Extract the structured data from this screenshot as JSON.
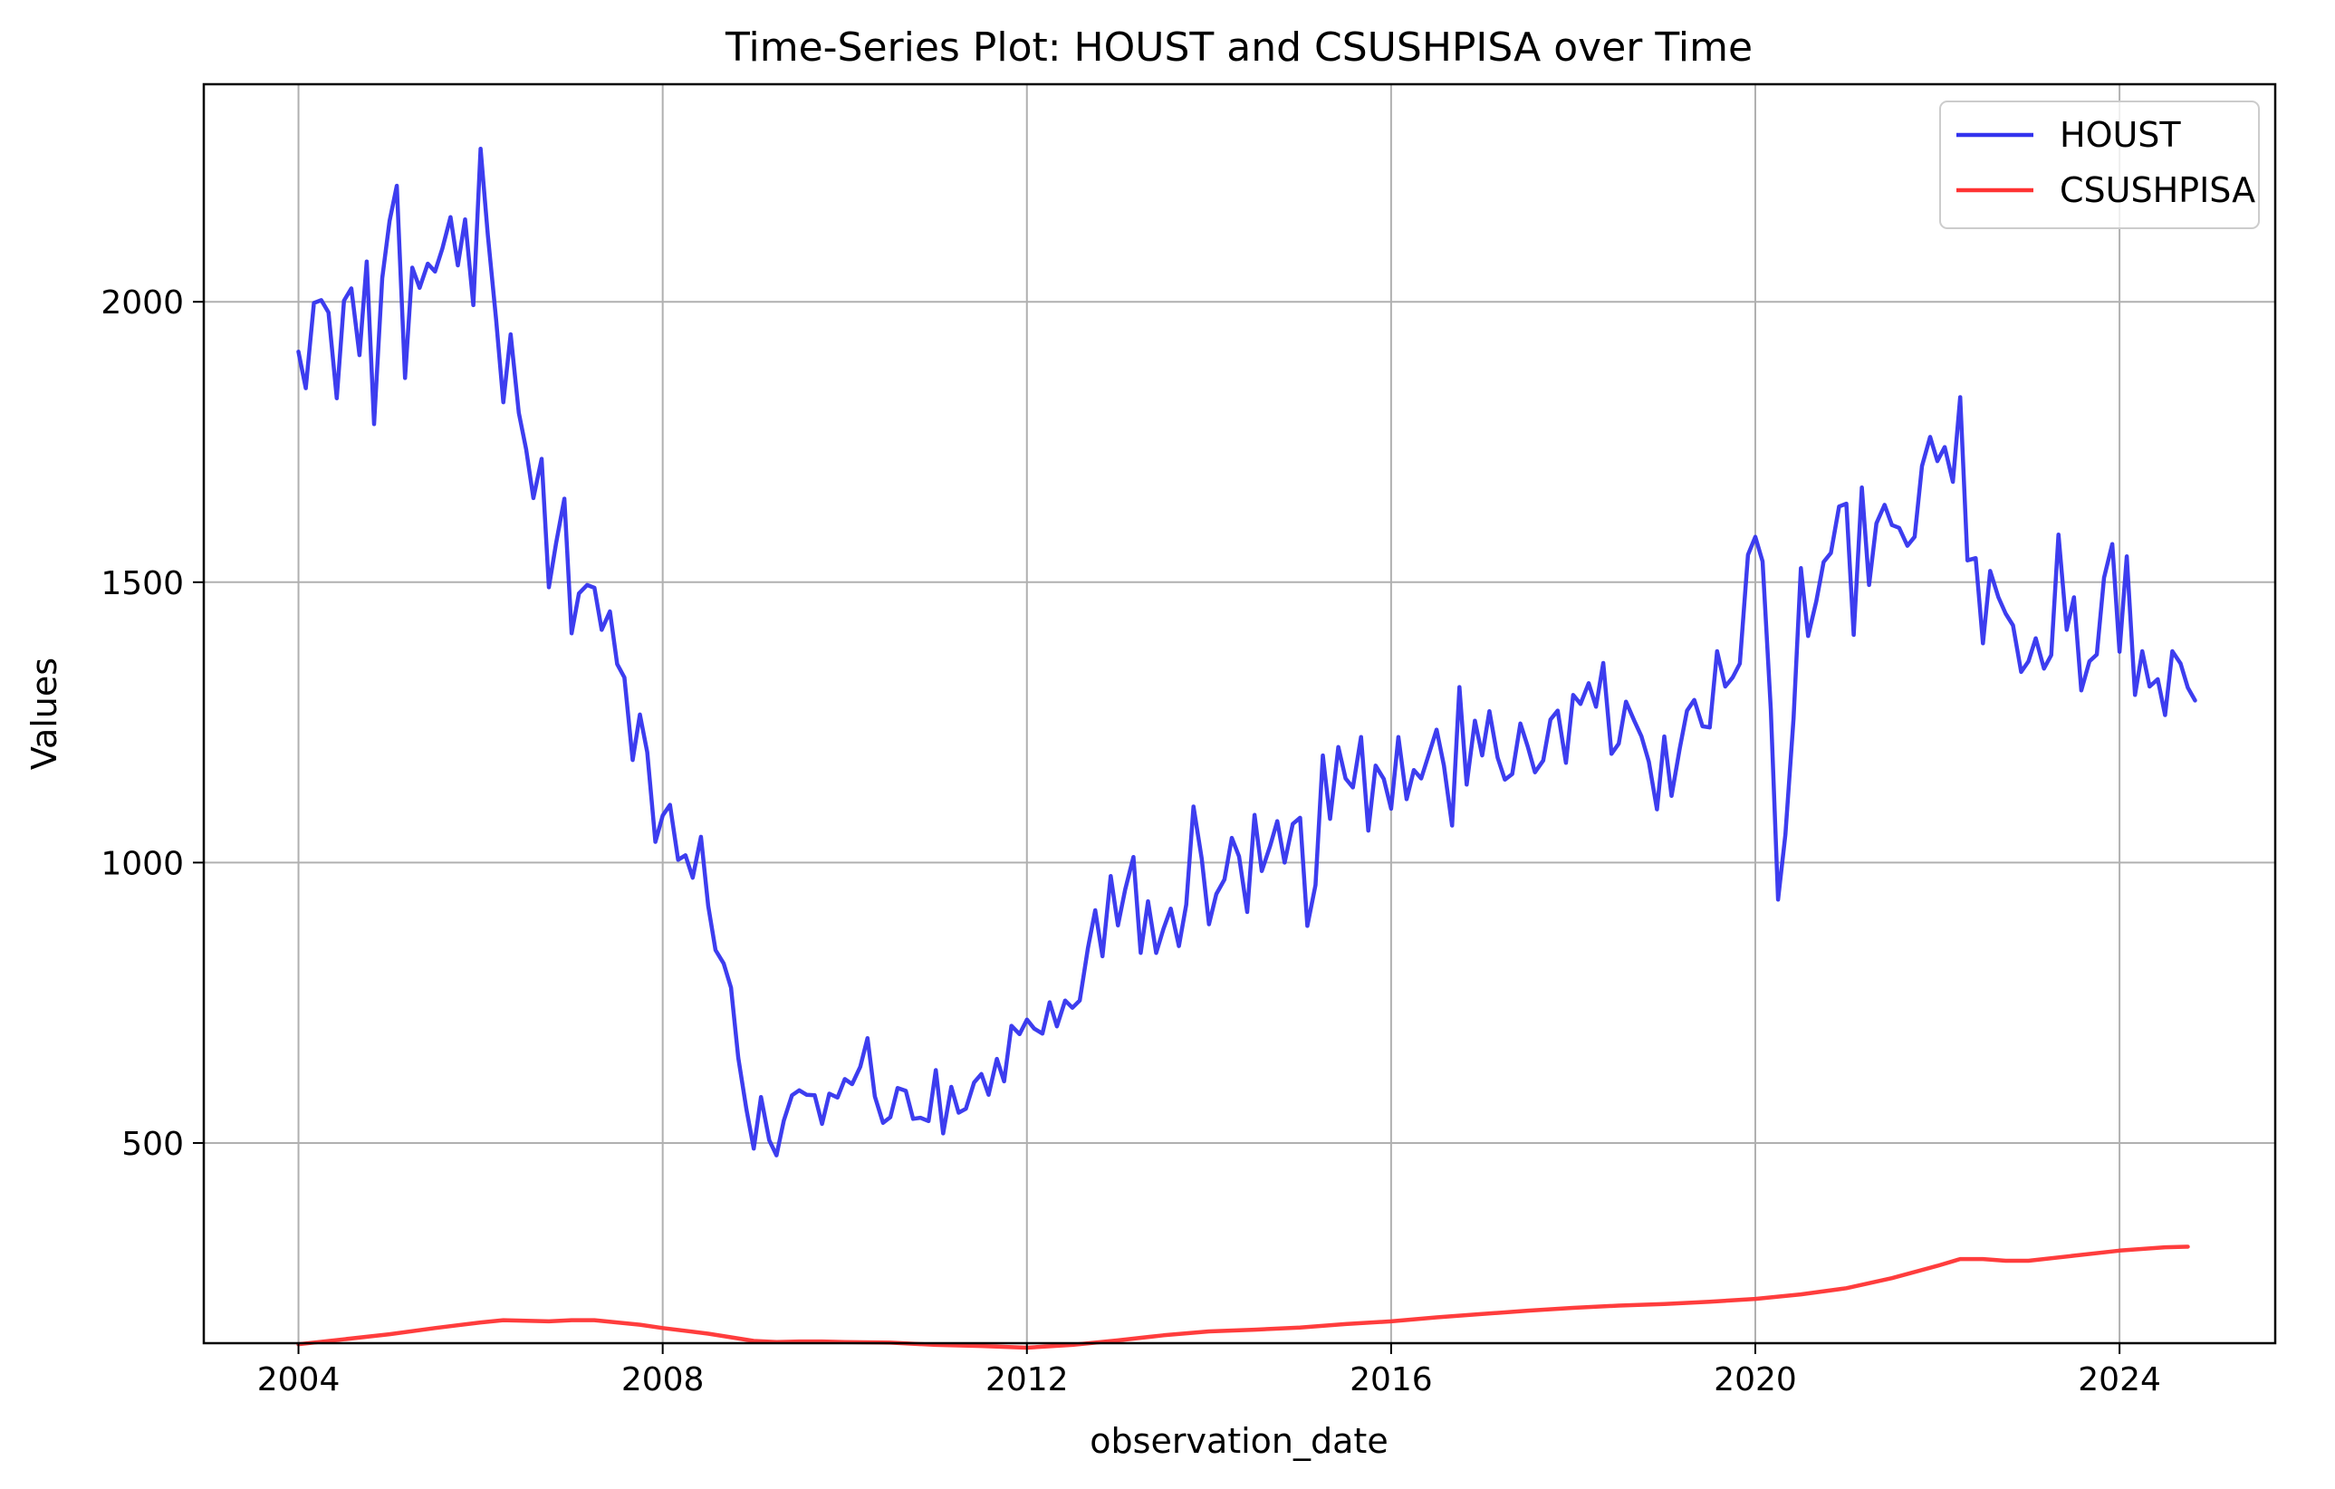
{
  "chart_data": {
    "type": "line",
    "title": "Time-Series Plot: HOUST and CSUSHPISA over Time",
    "xlabel": "observation_date",
    "ylabel": "Values",
    "xlim": [
      2002.96,
      2025.71
    ],
    "ylim": [
      143,
      2388
    ],
    "x_ticks": [
      {
        "value": 2004,
        "label": "2004"
      },
      {
        "value": 2008,
        "label": "2008"
      },
      {
        "value": 2012,
        "label": "2012"
      },
      {
        "value": 2016,
        "label": "2016"
      },
      {
        "value": 2020,
        "label": "2020"
      },
      {
        "value": 2024,
        "label": "2024"
      }
    ],
    "y_ticks": [
      {
        "value": 500,
        "label": "500"
      },
      {
        "value": 1000,
        "label": "1000"
      },
      {
        "value": 1500,
        "label": "1500"
      },
      {
        "value": 2000,
        "label": "2000"
      }
    ],
    "grid": true,
    "legend_position": "top-right",
    "series": [
      {
        "name": "HOUST",
        "color": "#3333ee",
        "x": [
          2004.0,
          2004.08,
          2004.17,
          2004.25,
          2004.33,
          2004.42,
          2004.5,
          2004.58,
          2004.67,
          2004.75,
          2004.83,
          2004.92,
          2005.0,
          2005.08,
          2005.17,
          2005.25,
          2005.33,
          2005.42,
          2005.5,
          2005.58,
          2005.67,
          2005.75,
          2005.83,
          2005.92,
          2006.0,
          2006.08,
          2006.17,
          2006.25,
          2006.33,
          2006.42,
          2006.5,
          2006.58,
          2006.67,
          2006.75,
          2006.83,
          2006.92,
          2007.0,
          2007.08,
          2007.17,
          2007.25,
          2007.33,
          2007.42,
          2007.5,
          2007.58,
          2007.67,
          2007.75,
          2007.83,
          2007.92,
          2008.0,
          2008.08,
          2008.17,
          2008.25,
          2008.33,
          2008.42,
          2008.5,
          2008.58,
          2008.67,
          2008.75,
          2008.83,
          2008.92,
          2009.0,
          2009.08,
          2009.17,
          2009.25,
          2009.33,
          2009.42,
          2009.5,
          2009.58,
          2009.67,
          2009.75,
          2009.83,
          2009.92,
          2010.0,
          2010.08,
          2010.17,
          2010.25,
          2010.33,
          2010.42,
          2010.5,
          2010.58,
          2010.67,
          2010.75,
          2010.83,
          2010.92,
          2011.0,
          2011.08,
          2011.17,
          2011.25,
          2011.33,
          2011.42,
          2011.5,
          2011.58,
          2011.67,
          2011.75,
          2011.83,
          2011.92,
          2012.0,
          2012.08,
          2012.17,
          2012.25,
          2012.33,
          2012.42,
          2012.5,
          2012.58,
          2012.67,
          2012.75,
          2012.83,
          2012.92,
          2013.0,
          2013.08,
          2013.17,
          2013.25,
          2013.33,
          2013.42,
          2013.5,
          2013.58,
          2013.67,
          2013.75,
          2013.83,
          2013.92,
          2014.0,
          2014.08,
          2014.17,
          2014.25,
          2014.33,
          2014.42,
          2014.5,
          2014.58,
          2014.67,
          2014.75,
          2014.83,
          2014.92,
          2015.0,
          2015.08,
          2015.17,
          2015.25,
          2015.33,
          2015.42,
          2015.5,
          2015.58,
          2015.67,
          2015.75,
          2015.83,
          2015.92,
          2016.0,
          2016.08,
          2016.17,
          2016.25,
          2016.33,
          2016.42,
          2016.5,
          2016.58,
          2016.67,
          2016.75,
          2016.83,
          2016.92,
          2017.0,
          2017.08,
          2017.17,
          2017.25,
          2017.33,
          2017.42,
          2017.5,
          2017.58,
          2017.67,
          2017.75,
          2017.83,
          2017.92,
          2018.0,
          2018.08,
          2018.17,
          2018.25,
          2018.33,
          2018.42,
          2018.5,
          2018.58,
          2018.67,
          2018.75,
          2018.83,
          2018.92,
          2019.0,
          2019.08,
          2019.17,
          2019.25,
          2019.33,
          2019.42,
          2019.5,
          2019.58,
          2019.67,
          2019.75,
          2019.83,
          2019.92,
          2020.0,
          2020.08,
          2020.17,
          2020.25,
          2020.33,
          2020.42,
          2020.5,
          2020.58,
          2020.67,
          2020.75,
          2020.83,
          2020.92,
          2021.0,
          2021.08,
          2021.17,
          2021.25,
          2021.33,
          2021.42,
          2021.5,
          2021.58,
          2021.67,
          2021.75,
          2021.83,
          2021.92,
          2022.0,
          2022.08,
          2022.17,
          2022.25,
          2022.33,
          2022.42,
          2022.5,
          2022.58,
          2022.67,
          2022.75,
          2022.83,
          2022.92,
          2023.0,
          2023.08,
          2023.17,
          2023.25,
          2023.33,
          2023.42,
          2023.5,
          2023.58,
          2023.67,
          2023.75,
          2023.83,
          2023.92,
          2024.0,
          2024.08,
          2024.17,
          2024.25,
          2024.33,
          2024.42,
          2024.5,
          2024.58,
          2024.67,
          2024.75,
          2024.83
        ],
        "values": [
          1911,
          1846,
          1998,
          2003,
          1981,
          1828,
          2002,
          2024,
          1905,
          2072,
          1782,
          2042,
          2144,
          2207,
          1864,
          2061,
          2025,
          2068,
          2054,
          2095,
          2151,
          2065,
          2147,
          1994,
          2273,
          2119,
          1969,
          1821,
          1942,
          1802,
          1737,
          1650,
          1720,
          1491,
          1570,
          1649,
          1409,
          1480,
          1495,
          1490,
          1415,
          1448,
          1354,
          1330,
          1183,
          1264,
          1197,
          1037,
          1084,
          1103,
          1005,
          1013,
          973,
          1046,
          923,
          844,
          820,
          777,
          652,
          560,
          490,
          582,
          505,
          478,
          540,
          585,
          594,
          586,
          585,
          534,
          588,
          581,
          614,
          605,
          636,
          687,
          583,
          536,
          546,
          598,
          593,
          543,
          545,
          539,
          630,
          517,
          600,
          554,
          561,
          608,
          623,
          586,
          650,
          610,
          709,
          694,
          720,
          704,
          695,
          751,
          708,
          754,
          741,
          754,
          847,
          915,
          833,
          976,
          888,
          952,
          1010,
          839,
          931,
          839,
          882,
          918,
          851,
          925,
          1100,
          1007,
          890,
          944,
          970,
          1044,
          1011,
          912,
          1085,
          985,
          1029,
          1074,
          1000,
          1069,
          1080,
          887,
          960,
          1191,
          1078,
          1206,
          1150,
          1134,
          1224,
          1057,
          1173,
          1149,
          1096,
          1224,
          1113,
          1165,
          1150,
          1196,
          1237,
          1173,
          1066,
          1313,
          1139,
          1253,
          1191,
          1270,
          1187,
          1148,
          1158,
          1248,
          1207,
          1161,
          1182,
          1255,
          1271,
          1178,
          1299,
          1283,
          1320,
          1278,
          1356,
          1194,
          1212,
          1287,
          1253,
          1225,
          1180,
          1095,
          1225,
          1119,
          1204,
          1271,
          1290,
          1243,
          1241,
          1377,
          1314,
          1330,
          1355,
          1549,
          1581,
          1537,
          1273,
          934,
          1050,
          1257,
          1525,
          1404,
          1466,
          1536,
          1552,
          1635,
          1640,
          1406,
          1669,
          1495,
          1605,
          1638,
          1602,
          1597,
          1565,
          1581,
          1707,
          1759,
          1716,
          1741,
          1679,
          1830,
          1539,
          1543,
          1391,
          1520,
          1473,
          1444,
          1423,
          1340,
          1359,
          1400,
          1346,
          1370,
          1585,
          1415,
          1473,
          1307,
          1359,
          1371,
          1508,
          1568,
          1376,
          1546,
          1299,
          1377,
          1314,
          1327,
          1263,
          1377,
          1355,
          1312,
          1289
        ]
      },
      {
        "name": "CSUSHPISA",
        "color": "#ff3333",
        "x": [
          2004.0,
          2004.5,
          2005.0,
          2005.5,
          2006.0,
          2006.25,
          2006.5,
          2006.75,
          2007.0,
          2007.25,
          2007.5,
          2007.75,
          2008.0,
          2008.5,
          2009.0,
          2009.25,
          2009.5,
          2009.75,
          2010.0,
          2010.5,
          2011.0,
          2011.5,
          2012.0,
          2012.5,
          2013.0,
          2013.5,
          2014.0,
          2014.5,
          2015.0,
          2015.5,
          2016.0,
          2016.5,
          2017.0,
          2017.5,
          2018.0,
          2018.5,
          2019.0,
          2019.5,
          2020.0,
          2020.5,
          2021.0,
          2021.5,
          2022.0,
          2022.25,
          2022.5,
          2022.75,
          2023.0,
          2023.5,
          2024.0,
          2024.5,
          2024.75
        ],
        "values": [
          141,
          150,
          159,
          170,
          180,
          184,
          183,
          182,
          184,
          184,
          180,
          176,
          170,
          160,
          147,
          145,
          146,
          146,
          145,
          144,
          140,
          138,
          135,
          140,
          148,
          157,
          164,
          167,
          171,
          177,
          182,
          189,
          195,
          201,
          206,
          210,
          213,
          217,
          222,
          230,
          241,
          259,
          281,
          293,
          293,
          290,
          290,
          299,
          308,
          314,
          315
        ]
      }
    ]
  }
}
